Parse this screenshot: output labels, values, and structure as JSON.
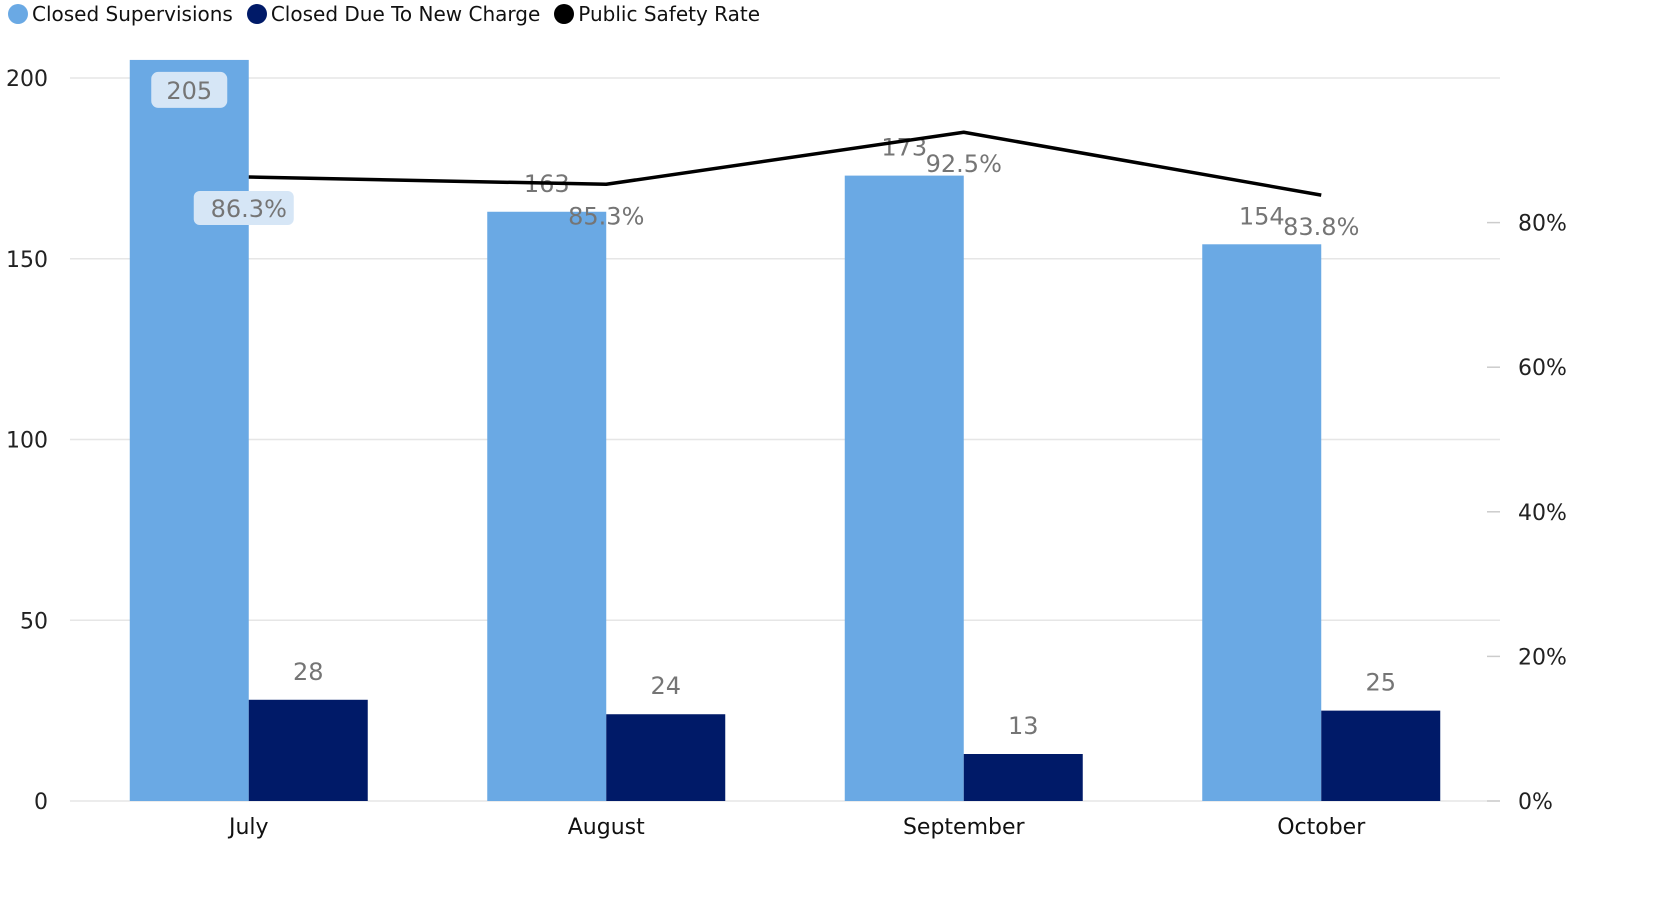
{
  "chart_data": {
    "type": "bar",
    "categories": [
      "July",
      "August",
      "September",
      "October"
    ],
    "series": [
      {
        "name": "Closed Supervisions",
        "type": "bar",
        "axis": "left",
        "color": "#6aa9e4",
        "values": [
          205,
          163,
          173,
          154
        ]
      },
      {
        "name": "Closed Due To New Charge",
        "type": "bar",
        "axis": "left",
        "color": "#001a68",
        "values": [
          28,
          24,
          13,
          25
        ]
      },
      {
        "name": "Public Safety Rate",
        "type": "line",
        "axis": "right",
        "color": "#000000",
        "values": [
          86.3,
          85.3,
          92.5,
          83.8
        ],
        "labels": [
          "86.3%",
          "85.3%",
          "92.5%",
          "83.8%"
        ]
      }
    ],
    "y_left": {
      "ylim": [
        0,
        200
      ],
      "ticks": [
        "0",
        "50",
        "100",
        "150",
        "200"
      ]
    },
    "y_right": {
      "ylim": [
        0,
        100
      ],
      "ticks": [
        "0%",
        "20%",
        "40%",
        "60%",
        "80%"
      ]
    },
    "grid": true,
    "legend_position": "top-left"
  }
}
